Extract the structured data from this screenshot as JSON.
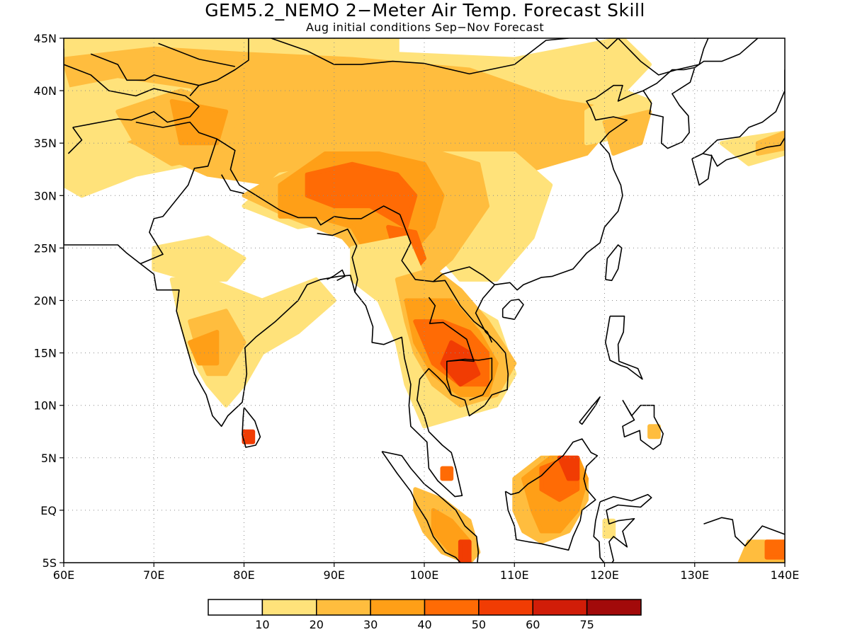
{
  "title": "GEM5.2_NEMO 2−Meter Air Temp. Forecast Skill",
  "subtitle": "Aug initial conditions  Sep−Nov Forecast",
  "lon_labels": [
    "60E",
    "70E",
    "80E",
    "90E",
    "100E",
    "110E",
    "120E",
    "130E",
    "140E"
  ],
  "lat_labels": [
    "45N",
    "40N",
    "35N",
    "30N",
    "25N",
    "20N",
    "15N",
    "10N",
    "5N",
    "EQ",
    "5S"
  ],
  "legend": {
    "levels": [
      "10",
      "20",
      "30",
      "40",
      "50",
      "60",
      "75"
    ],
    "colors": [
      "#ffffff",
      "#ffe27a",
      "#ffbd3e",
      "#ff9f17",
      "#ff6b05",
      "#f13c03",
      "#d11d08",
      "#a20a0a"
    ]
  },
  "map": {
    "region": {
      "lon_min": 60,
      "lon_max": 140,
      "lat_min": -5,
      "lat_max": 45
    },
    "grid": {
      "lon_step": 10,
      "lat_step": 5,
      "gridlines": "dotted"
    },
    "fields": [
      {
        "region": "Central Asia / Himalaya",
        "level": "20-40"
      },
      {
        "region": "Tibetan Plateau",
        "level": "40-50"
      },
      {
        "region": "Indochina",
        "level": "40-60"
      },
      {
        "region": "Borneo",
        "level": "30-60"
      },
      {
        "region": "Sumatra",
        "level": "30-60"
      },
      {
        "region": "Southern China",
        "level": "10-30"
      },
      {
        "region": "Peninsular India",
        "level": "10-40"
      }
    ]
  }
}
